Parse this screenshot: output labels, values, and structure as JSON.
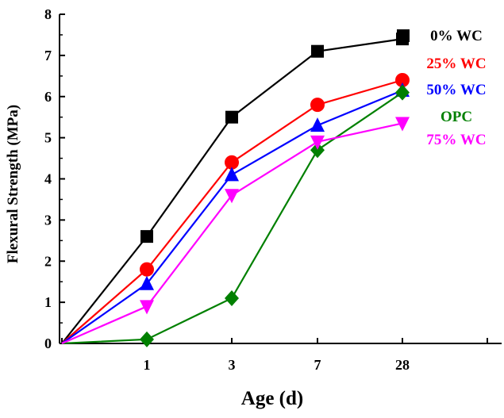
{
  "chart_data": {
    "type": "line",
    "xlabel": "Age (d)",
    "ylabel": "Flexural Strength (MPa)",
    "categories": [
      "0",
      "1",
      "3",
      "7",
      "28"
    ],
    "category_labels": [
      "",
      "1",
      "3",
      "7",
      "28"
    ],
    "ylim": [
      0,
      8
    ],
    "y_ticks": [
      0,
      1,
      2,
      3,
      4,
      5,
      6,
      7,
      8
    ],
    "grid": false,
    "legend": "right",
    "series": [
      {
        "name": "0% WC",
        "color": "#000000",
        "marker": "square",
        "values": [
          0,
          2.6,
          5.5,
          7.1,
          7.4
        ]
      },
      {
        "name": "25% WC",
        "color": "#ff0000",
        "marker": "circle",
        "values": [
          0,
          1.8,
          4.4,
          5.8,
          6.4
        ]
      },
      {
        "name": "50% WC",
        "color": "#0000ff",
        "marker": "triangle-up",
        "values": [
          0,
          1.45,
          4.1,
          5.3,
          6.15
        ]
      },
      {
        "name": "OPC",
        "color": "#008000",
        "marker": "diamond",
        "values": [
          0,
          0.1,
          1.1,
          4.7,
          6.1
        ]
      },
      {
        "name": "75% WC",
        "color": "#ff00ff",
        "marker": "triangle-down",
        "values": [
          0,
          0.9,
          3.6,
          4.9,
          5.35
        ]
      }
    ]
  }
}
